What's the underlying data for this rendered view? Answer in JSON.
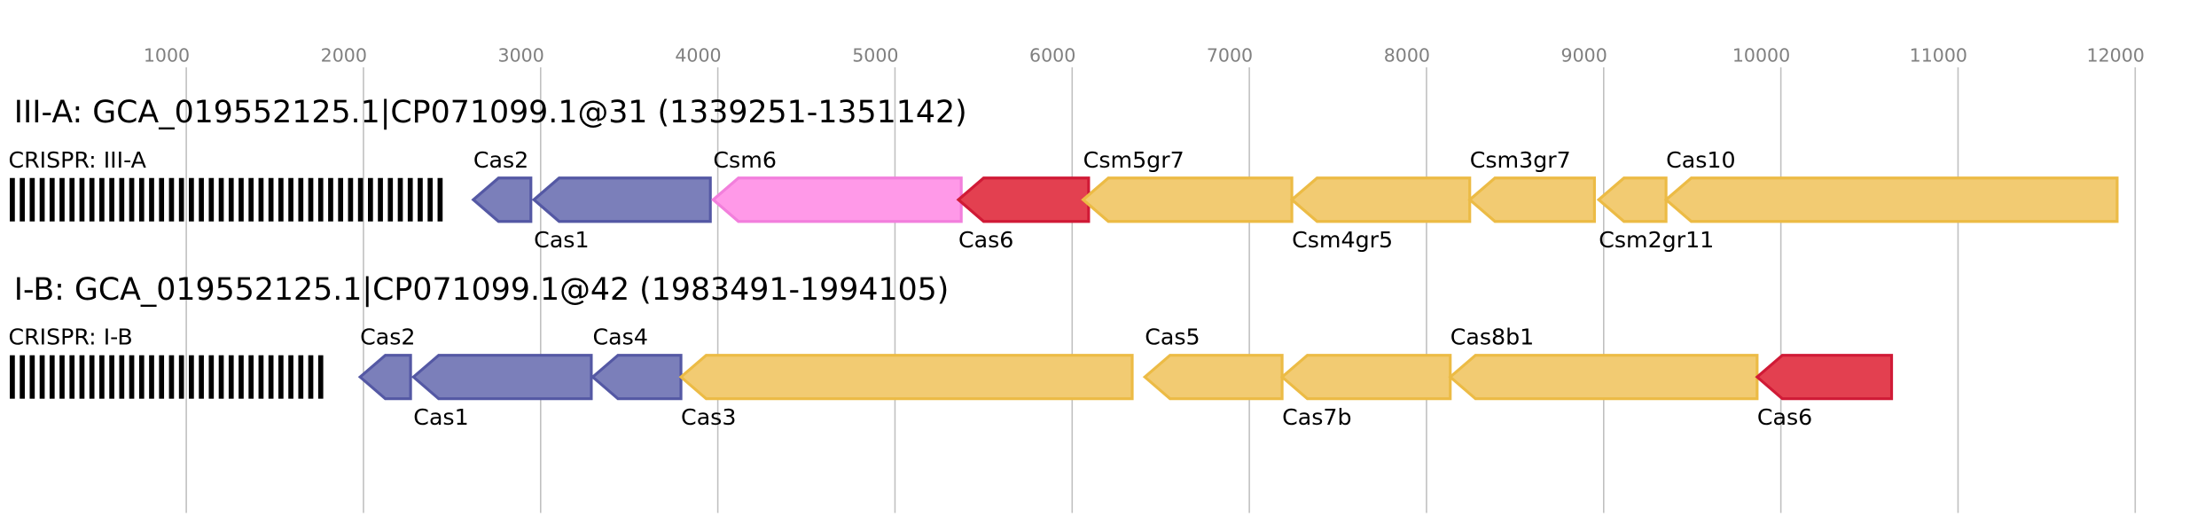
{
  "axis": {
    "ticks": [
      1000,
      2000,
      3000,
      4000,
      5000,
      6000,
      7000,
      8000,
      9000,
      10000,
      11000,
      12000
    ]
  },
  "tracks": [
    {
      "title": "III-A: GCA_019552125.1|CP071099.1@31 (1339251-1351142)",
      "crispr": {
        "label": "CRISPR: III-A",
        "start": 0,
        "end": 2480
      },
      "genes": [
        {
          "label": "Cas2",
          "start": 2620,
          "end": 2945,
          "color": "#7b7fba",
          "stroke": "#5458a4",
          "direction": "left"
        },
        {
          "label": "Cas1",
          "start": 2962,
          "end": 3958,
          "color": "#7b7fba",
          "stroke": "#5458a4",
          "direction": "left"
        },
        {
          "label": "Csm6",
          "start": 3974,
          "end": 5374,
          "color": "#ff99e8",
          "stroke": "#f27fdc",
          "direction": "left"
        },
        {
          "label": "Cas6",
          "start": 5358,
          "end": 6093,
          "color": "#e34050",
          "stroke": "#d01a36",
          "direction": "left"
        },
        {
          "label": "Csm5gr7",
          "start": 6062,
          "end": 7240,
          "color": "#f2cb72",
          "stroke": "#ecbb45",
          "direction": "left"
        },
        {
          "label": "Csm4gr5",
          "start": 7240,
          "end": 8244,
          "color": "#f2cb72",
          "stroke": "#ecbb45",
          "direction": "left"
        },
        {
          "label": "Csm3gr7",
          "start": 8244,
          "end": 8948,
          "color": "#f2cb72",
          "stroke": "#ecbb45",
          "direction": "left"
        },
        {
          "label": "Csm2gr11",
          "start": 8972,
          "end": 9352,
          "color": "#f2cb72",
          "stroke": "#ecbb45",
          "direction": "left"
        },
        {
          "label": "Cas10",
          "start": 9352,
          "end": 11898,
          "color": "#f2cb72",
          "stroke": "#ecbb45",
          "direction": "left"
        }
      ]
    },
    {
      "title": "I-B: GCA_019552125.1|CP071099.1@42 (1983491-1994105)",
      "crispr": {
        "label": "CRISPR: I-B",
        "start": 0,
        "end": 1806
      },
      "genes": [
        {
          "label": "Cas2",
          "start": 1981,
          "end": 2266,
          "color": "#7b7fba",
          "stroke": "#5458a4",
          "direction": "left"
        },
        {
          "label": "Cas1",
          "start": 2282,
          "end": 3286,
          "color": "#7b7fba",
          "stroke": "#5458a4",
          "direction": "left"
        },
        {
          "label": "Cas4",
          "start": 3294,
          "end": 3792,
          "color": "#7b7fba",
          "stroke": "#5458a4",
          "direction": "left"
        },
        {
          "label": "Cas3",
          "start": 3792,
          "end": 6339,
          "color": "#f2cb72",
          "stroke": "#ecbb45",
          "direction": "left"
        },
        {
          "label": "Cas5",
          "start": 6410,
          "end": 7185,
          "color": "#f2cb72",
          "stroke": "#ecbb45",
          "direction": "left"
        },
        {
          "label": "Cas7b",
          "start": 7185,
          "end": 8134,
          "color": "#f2cb72",
          "stroke": "#ecbb45",
          "direction": "left"
        },
        {
          "label": "Cas8b1",
          "start": 8134,
          "end": 9866,
          "color": "#f2cb72",
          "stroke": "#ecbb45",
          "direction": "left"
        },
        {
          "label": "Cas6",
          "start": 9866,
          "end": 10625,
          "color": "#e34050",
          "stroke": "#d01a36",
          "direction": "left"
        }
      ]
    }
  ]
}
